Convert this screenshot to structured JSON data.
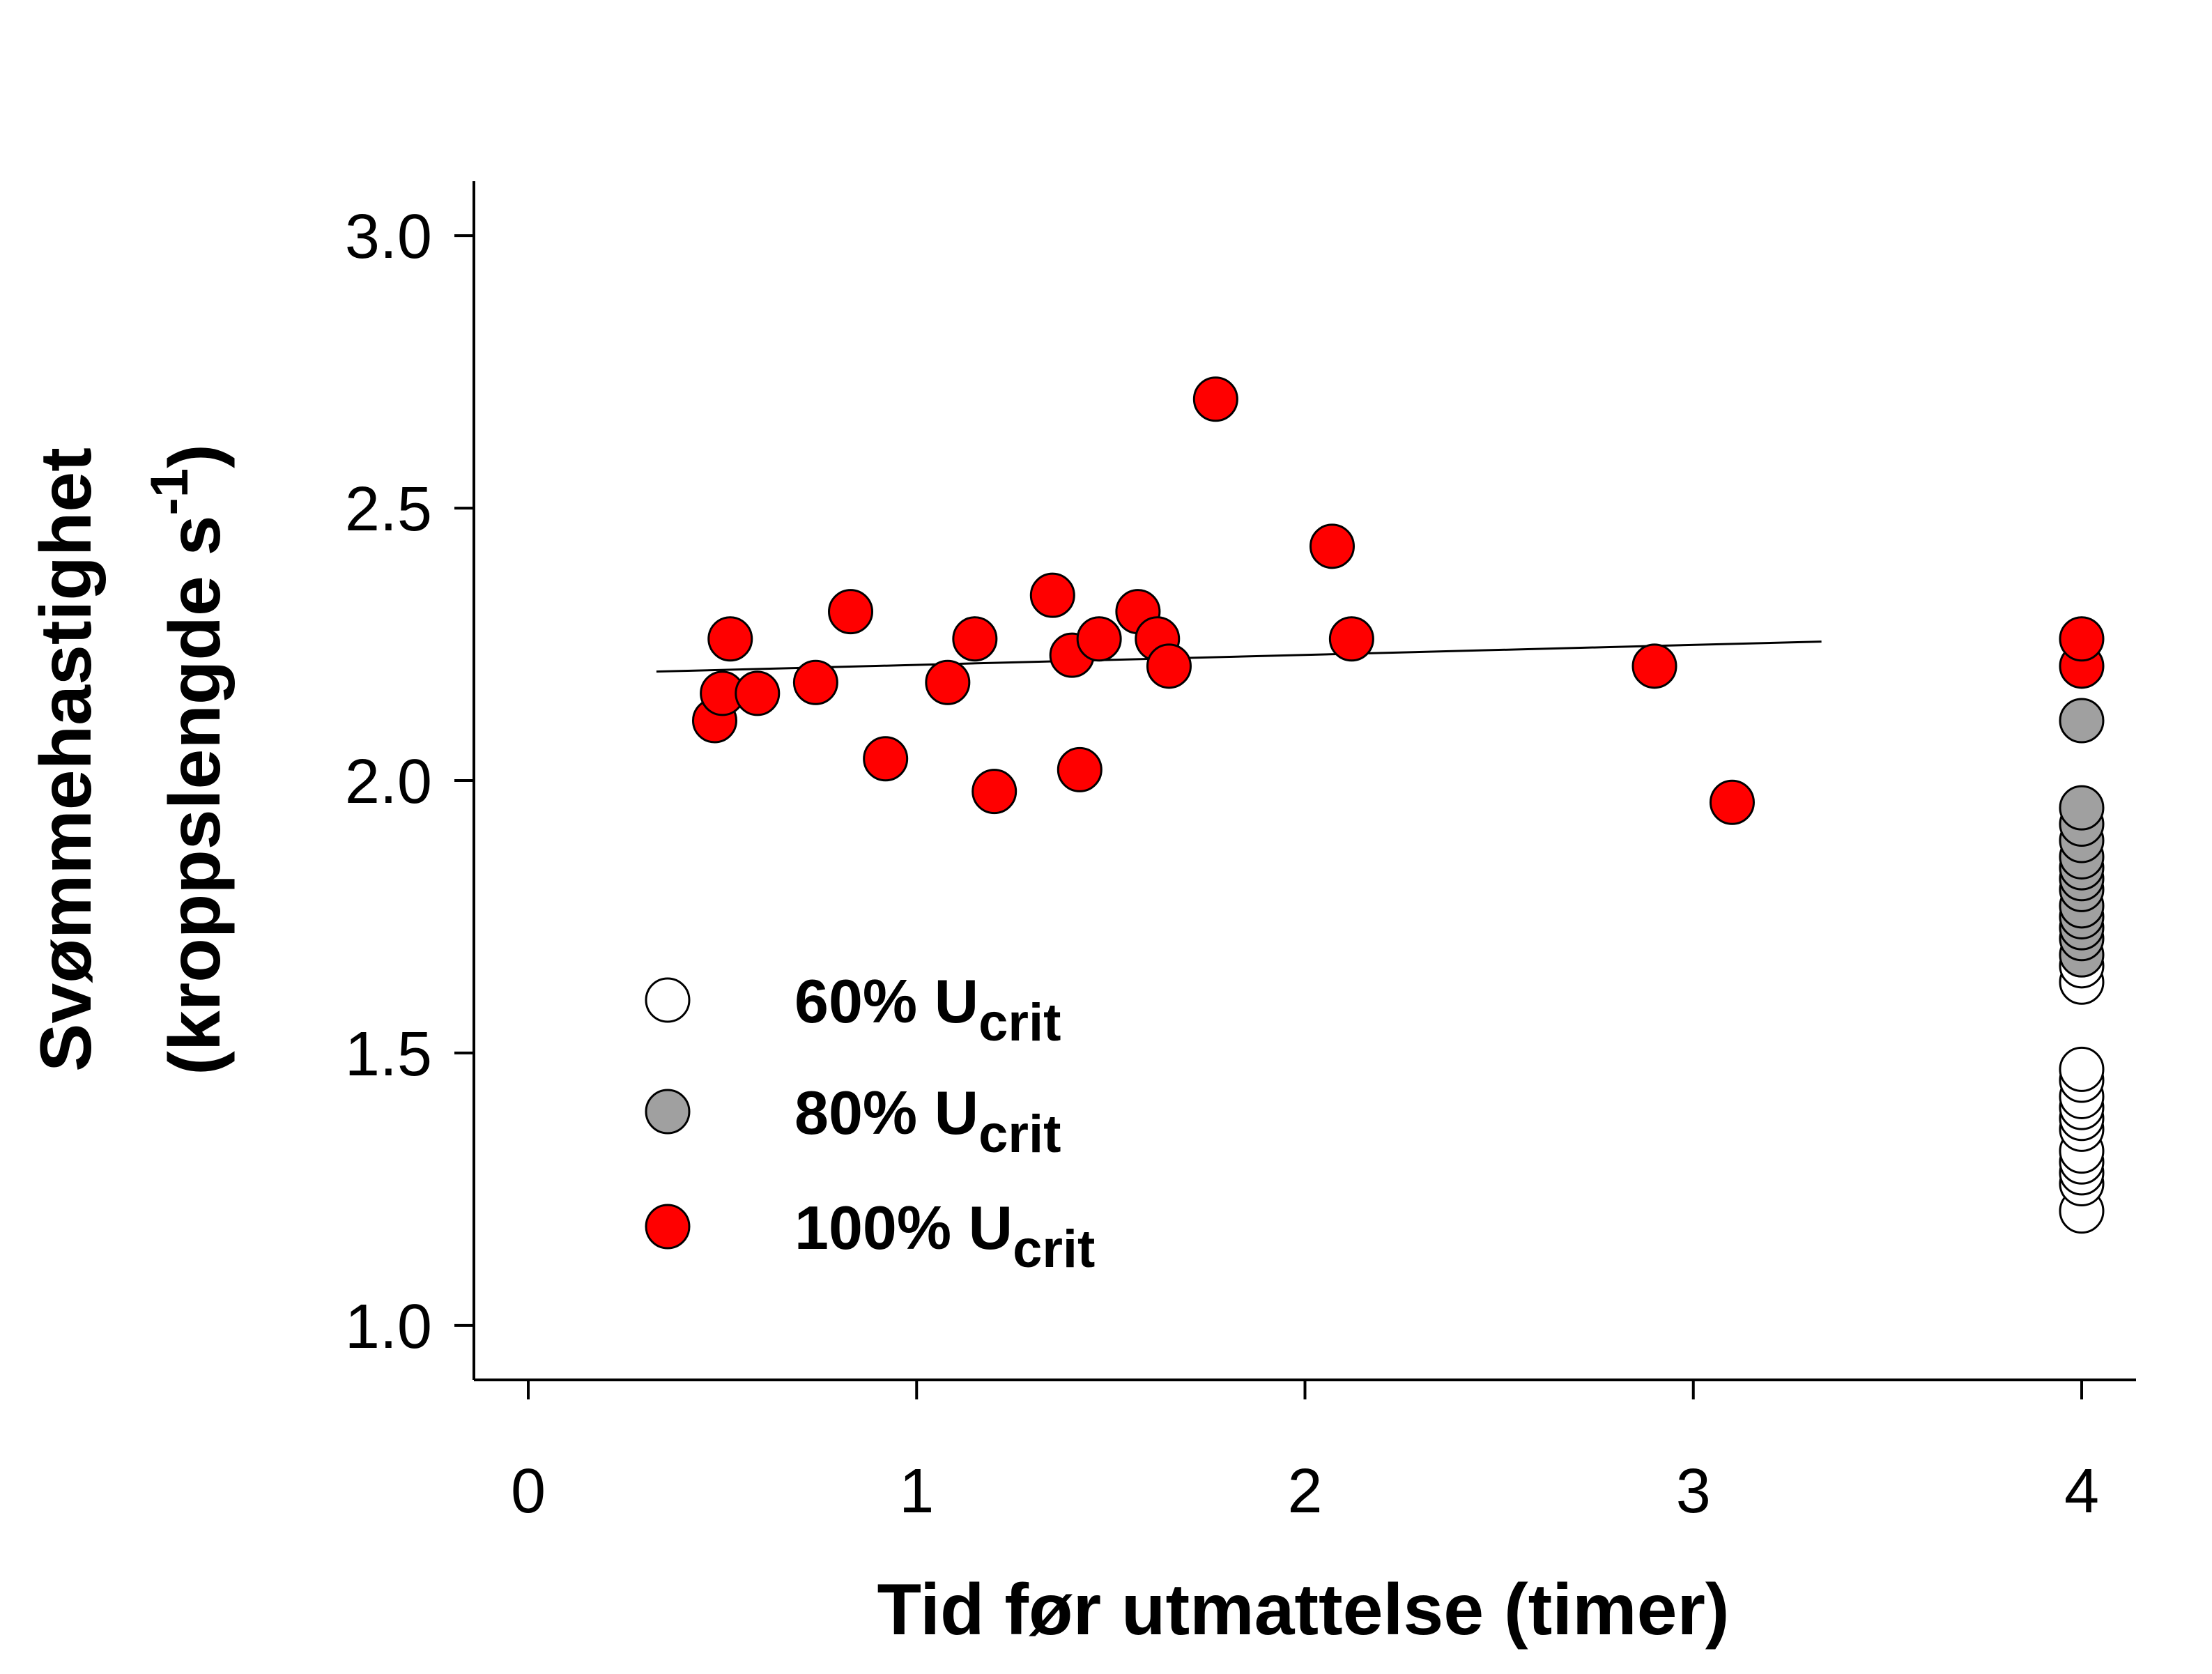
{
  "chart_data": {
    "type": "scatter",
    "xlabel": "Tid før utmattelse (timer)",
    "ylabel_line1": "Svømmehastighet",
    "ylabel_line2_main": "(kroppslengde s",
    "ylabel_line2_sup": "-1",
    "ylabel_line2_end": ")",
    "xlim": [
      -0.14,
      4.14
    ],
    "ylim": [
      0.9,
      3.1
    ],
    "x_ticks": [
      0,
      1,
      2,
      3,
      4
    ],
    "x_tick_labels": [
      "0",
      "1",
      "2",
      "3",
      "4"
    ],
    "y_ticks": [
      1.0,
      1.5,
      2.0,
      2.5,
      3.0
    ],
    "y_tick_labels": [
      "1.0",
      "1.5",
      "2.0",
      "2.5",
      "3.0"
    ],
    "legend_position": "lower-left",
    "series": [
      {
        "name": "60% U",
        "sub": "crit",
        "color": "#ffffff",
        "x": [
          4,
          4,
          4,
          4,
          4,
          4,
          4,
          4,
          4,
          4,
          4,
          4,
          4
        ],
        "y": [
          1.21,
          1.26,
          1.28,
          1.3,
          1.32,
          1.36,
          1.38,
          1.4,
          1.42,
          1.45,
          1.47,
          1.63,
          1.66
        ]
      },
      {
        "name": "80% U",
        "sub": "crit",
        "color": "#a0a0a0",
        "x": [
          4,
          4,
          4,
          4,
          4,
          4,
          4,
          4,
          4,
          4,
          4,
          4,
          4
        ],
        "y": [
          1.68,
          1.71,
          1.73,
          1.75,
          1.77,
          1.8,
          1.82,
          1.84,
          1.86,
          1.89,
          1.92,
          1.95,
          2.11
        ]
      },
      {
        "name": "100% U",
        "sub": "crit",
        "color": "#ff0000",
        "x": [
          0.48,
          0.5,
          0.52,
          0.59,
          0.74,
          0.83,
          0.92,
          1.08,
          1.15,
          1.2,
          1.35,
          1.4,
          1.42,
          1.47,
          1.57,
          1.62,
          1.65,
          1.77,
          2.07,
          2.12,
          2.9,
          3.1,
          4.0,
          4.0
        ],
        "y": [
          2.11,
          2.16,
          2.26,
          2.16,
          2.18,
          2.31,
          2.04,
          2.18,
          2.26,
          1.98,
          2.34,
          2.23,
          2.02,
          2.26,
          2.31,
          2.26,
          2.21,
          2.7,
          2.43,
          2.26,
          2.21,
          1.96,
          2.21,
          2.26
        ]
      }
    ],
    "regression_line": {
      "x": [
        0.33,
        3.33
      ],
      "y": [
        2.2,
        2.255
      ]
    }
  }
}
